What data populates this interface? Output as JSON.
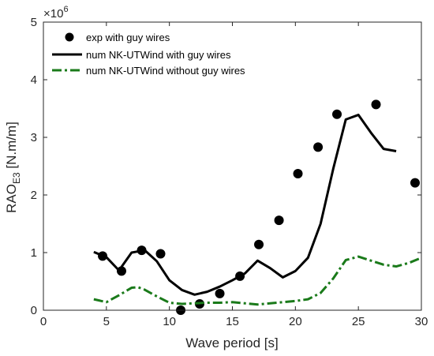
{
  "chart_data": {
    "type": "line",
    "title": "",
    "xlabel": "Wave period [s]",
    "ylabel": "RAO",
    "ylabel_sub": "E3",
    "ylabel_unit": " [N.m/m]",
    "y_multiplier": "×10",
    "y_multiplier_exp": "6",
    "xlim": [
      0,
      30
    ],
    "ylim": [
      0,
      5000000
    ],
    "xticks": [
      0,
      5,
      10,
      15,
      20,
      25,
      30
    ],
    "yticks": [
      0,
      1000000,
      2000000,
      3000000,
      4000000,
      5000000
    ],
    "xtick_labels": [
      "0",
      "5",
      "10",
      "15",
      "20",
      "25",
      "30"
    ],
    "ytick_labels": [
      "0",
      "1",
      "2",
      "3",
      "4",
      "5"
    ],
    "grid": false,
    "legend_position": "top-left",
    "series": [
      {
        "name": "exp with guy wires",
        "style": "markers",
        "color": "#000000",
        "x": [
          4.7,
          6.2,
          7.8,
          9.3,
          10.9,
          12.4,
          14.0,
          15.6,
          17.1,
          18.7,
          20.2,
          21.8,
          23.3,
          26.4,
          29.5
        ],
        "y": [
          940000,
          680000,
          1040000,
          980000,
          0,
          110000,
          290000,
          590000,
          1140000,
          1560000,
          2370000,
          2830000,
          3400000,
          3570000,
          2210000
        ]
      },
      {
        "name": "num NK-UTWind with guy wires",
        "style": "solid",
        "color": "#000000",
        "x": [
          4.0,
          5.0,
          6.0,
          7.0,
          7.5,
          8.0,
          9.0,
          10.0,
          11.0,
          12.0,
          13.0,
          14.0,
          15.0,
          16.0,
          17.0,
          18.0,
          19.0,
          20.0,
          21.0,
          22.0,
          23.0,
          24.0,
          25.0,
          26.0,
          27.0,
          28.0
        ],
        "y": [
          1010000,
          920000,
          690000,
          1000000,
          1020000,
          1050000,
          850000,
          520000,
          350000,
          270000,
          320000,
          410000,
          520000,
          640000,
          860000,
          730000,
          570000,
          680000,
          910000,
          1500000,
          2450000,
          3310000,
          3390000,
          3080000,
          2800000,
          2760000
        ]
      },
      {
        "name": "num NK-UTWind without guy wires",
        "style": "dashdot",
        "color": "#1a7a1a",
        "x": [
          4.0,
          5.0,
          6.0,
          7.0,
          7.5,
          8.0,
          9.0,
          10.0,
          11.0,
          12.0,
          13.0,
          14.0,
          15.0,
          16.0,
          17.0,
          18.0,
          19.0,
          20.0,
          21.0,
          22.0,
          23.0,
          24.0,
          25.0,
          26.0,
          27.0,
          28.0,
          29.0,
          30.0
        ],
        "y": [
          190000,
          140000,
          260000,
          390000,
          400000,
          360000,
          240000,
          130000,
          110000,
          120000,
          130000,
          130000,
          140000,
          120000,
          100000,
          120000,
          140000,
          160000,
          190000,
          300000,
          550000,
          870000,
          930000,
          860000,
          790000,
          760000,
          820000,
          910000
        ]
      }
    ]
  }
}
